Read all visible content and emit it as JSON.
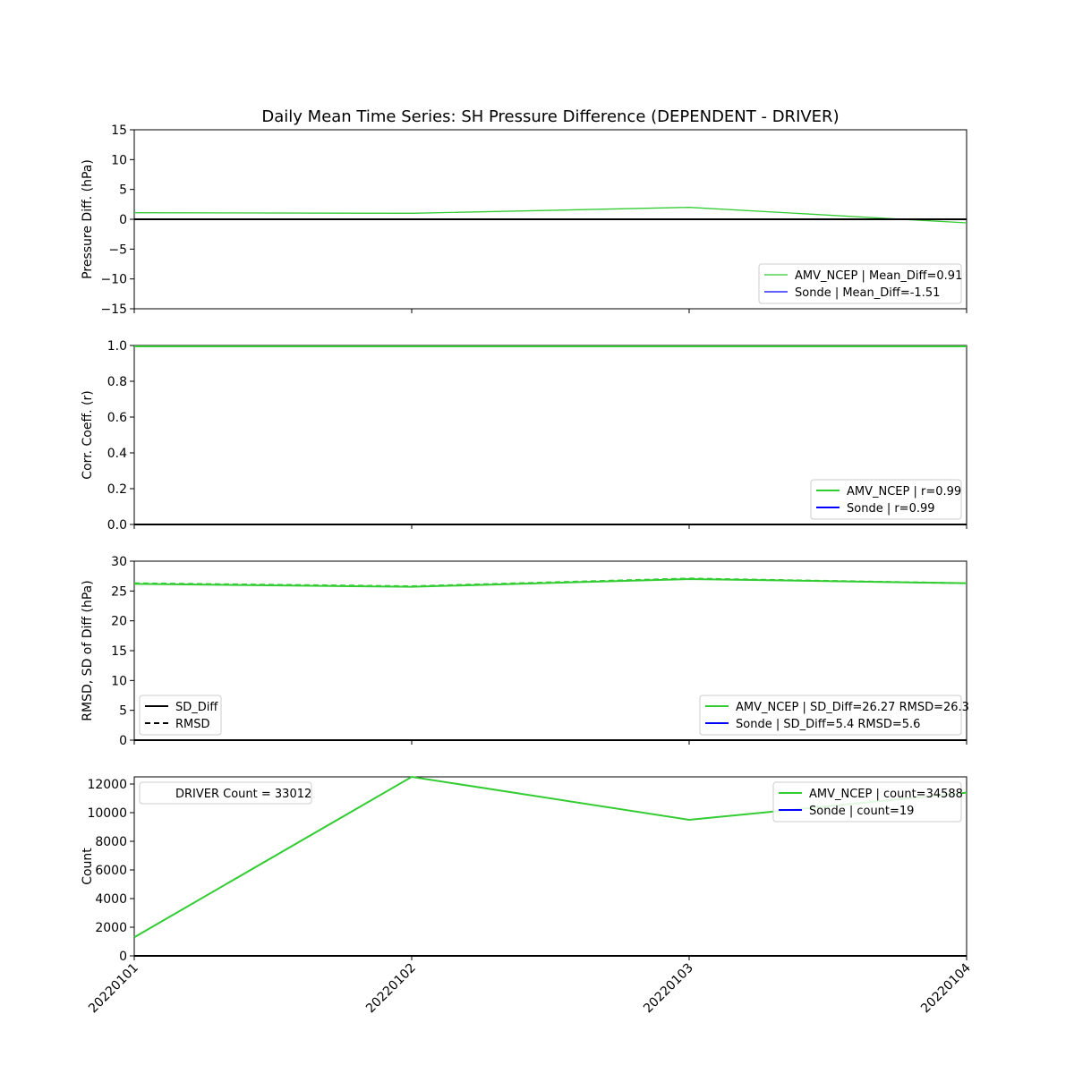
{
  "figure_title": "Daily Mean Time Series: SH Pressure Difference (DEPENDENT - DRIVER)",
  "x_categories": [
    "20220101",
    "20220102",
    "20220103",
    "20220104"
  ],
  "colors": {
    "amv": "#33cc33",
    "sonde": "#0000ff",
    "black": "#000000"
  },
  "chart_data": [
    {
      "type": "line",
      "title": "Daily Mean Time Series: SH Pressure Difference (DEPENDENT - DRIVER)",
      "ylabel": "Pressure Diff. (hPa)",
      "ylim": [
        -15,
        15
      ],
      "yticks": [
        -15,
        -10,
        -5,
        0,
        5,
        10,
        15
      ],
      "ytick_labels": [
        "−15",
        "−10",
        "−5",
        "0",
        "5",
        "10",
        "15"
      ],
      "categories": [
        "20220101",
        "20220102",
        "20220103",
        "20220104"
      ],
      "series": [
        {
          "name": "AMV_NCEP | Mean_Diff=0.91",
          "color": "#33cc33",
          "values": [
            1.1,
            1.0,
            2.0,
            -0.6
          ],
          "dash": ""
        },
        {
          "name": "Sonde | Mean_Diff=-1.51",
          "color": "#0000ff",
          "values": [
            0,
            0,
            0,
            0
          ],
          "dash": ""
        }
      ],
      "legend": "lower-right",
      "reference_line": 0
    },
    {
      "type": "line",
      "ylabel": "Corr. Coeff. (r)",
      "ylim": [
        0,
        1
      ],
      "yticks": [
        0,
        0.2,
        0.4,
        0.6,
        0.8,
        1.0
      ],
      "ytick_labels": [
        "0.0",
        "0.2",
        "0.4",
        "0.6",
        "0.8",
        "1.0"
      ],
      "categories": [
        "20220101",
        "20220102",
        "20220103",
        "20220104"
      ],
      "series": [
        {
          "name": "AMV_NCEP | r=0.99",
          "color": "#33cc33",
          "values": [
            0.995,
            0.995,
            0.995,
            0.995
          ],
          "dash": ""
        },
        {
          "name": "Sonde | r=0.99",
          "color": "#0000ff",
          "values": [
            0,
            0,
            0,
            0
          ],
          "dash": ""
        }
      ],
      "legend": "lower-right"
    },
    {
      "type": "line",
      "ylabel": "RMSD, SD of Diff (hPa)",
      "ylim": [
        0,
        30
      ],
      "yticks": [
        0,
        5,
        10,
        15,
        20,
        25,
        30
      ],
      "ytick_labels": [
        "0",
        "5",
        "10",
        "15",
        "20",
        "25",
        "30"
      ],
      "categories": [
        "20220101",
        "20220102",
        "20220103",
        "20220104"
      ],
      "series": [
        {
          "name": "AMV_NCEP | SD_Diff=26.27 RMSD=26.3",
          "color": "#33cc33",
          "values": [
            26.2,
            25.7,
            27.0,
            26.3
          ],
          "rmsd": [
            26.3,
            25.8,
            27.1,
            26.3
          ],
          "dash": ""
        },
        {
          "name": "Sonde | SD_Diff=5.4 RMSD=5.6",
          "color": "#0000ff",
          "values": [
            0,
            0,
            0,
            0
          ],
          "dash": ""
        }
      ],
      "style_legend": [
        "SD_Diff",
        "RMSD"
      ],
      "legend": "lower-right"
    },
    {
      "type": "line",
      "ylabel": "Count",
      "ylim": [
        0,
        12500
      ],
      "yticks": [
        0,
        2000,
        4000,
        6000,
        8000,
        10000,
        12000
      ],
      "ytick_labels": [
        "0",
        "2000",
        "4000",
        "6000",
        "8000",
        "10000",
        "12000"
      ],
      "categories": [
        "20220101",
        "20220102",
        "20220103",
        "20220104"
      ],
      "series": [
        {
          "name": "AMV_NCEP | count=34588",
          "color": "#33cc33",
          "values": [
            1300,
            12500,
            9500,
            11400
          ],
          "dash": ""
        },
        {
          "name": "Sonde | count=19",
          "color": "#0000ff",
          "values": [
            0,
            0,
            0,
            0
          ],
          "dash": ""
        }
      ],
      "driver_label": "DRIVER Count = 33012",
      "legend": "upper-right"
    }
  ]
}
